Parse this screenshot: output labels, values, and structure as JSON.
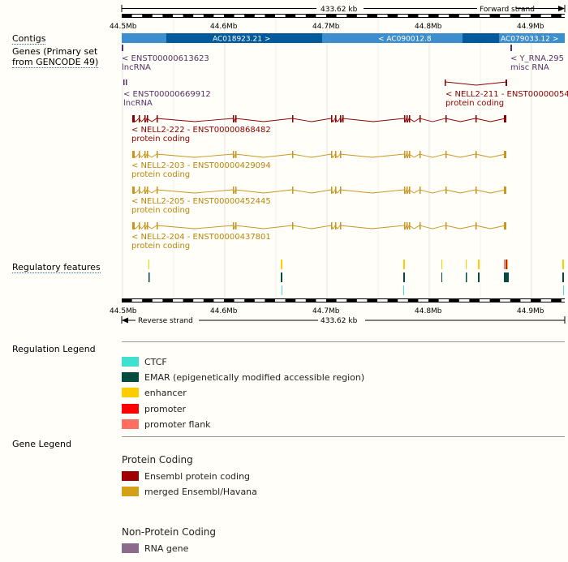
{
  "ruler_top": {
    "span": "433.62 kb",
    "strand": "Forward strand",
    "ticks": [
      "44.5Mb",
      "44.6Mb",
      "44.7Mb",
      "44.8Mb",
      "44.9Mb"
    ]
  },
  "ruler_bottom": {
    "span": "433.62 kb",
    "strand": "Reverse strand",
    "ticks": [
      "44.5Mb",
      "44.6Mb",
      "44.7Mb",
      "44.8Mb",
      "44.9Mb"
    ]
  },
  "track_labels": {
    "contigs": "Contigs",
    "genes_line1": "Genes (Primary set",
    "genes_line2": "from GENCODE 49)",
    "regulatory": "Regulatory features"
  },
  "contigs": [
    {
      "label": "AC018923.21 >"
    },
    {
      "label": "< AC090012.8"
    },
    {
      "label": "AC079033.12 >"
    }
  ],
  "genes": [
    {
      "name": "< ENST00000613623",
      "biotype": "lncRNA",
      "color": "#553366"
    },
    {
      "name": "< Y_RNA.295",
      "biotype": "misc RNA",
      "color": "#553366"
    },
    {
      "name": "< ENST00000669912",
      "biotype": "lncRNA",
      "color": "#553366"
    },
    {
      "name": "< NELL2-211 - ENST00000054",
      "biotype": "protein coding",
      "color": "#8b0000"
    },
    {
      "name": "< NELL2-222 - ENST00000868482",
      "biotype": "protein coding",
      "color": "#8b0000"
    },
    {
      "name": "< NELL2-203 - ENST00000429094",
      "biotype": "protein coding",
      "color": "#b8860b"
    },
    {
      "name": "< NELL2-205 - ENST00000452445",
      "biotype": "protein coding",
      "color": "#b8860b"
    },
    {
      "name": "< NELL2-204 - ENST00000437801",
      "biotype": "protein coding",
      "color": "#b8860b"
    }
  ],
  "regulation_legend": {
    "title": "Regulation Legend",
    "items": [
      {
        "label": "CTCF",
        "color": "#40e0d0"
      },
      {
        "label": "EMAR (epigenetically modified accessible region)",
        "color": "#004d40"
      },
      {
        "label": "enhancer",
        "color": "#ffcc00"
      },
      {
        "label": "promoter",
        "color": "#ff0000"
      },
      {
        "label": "promoter flank",
        "color": "#ff6f61"
      }
    ]
  },
  "gene_legend": {
    "title": "Gene Legend",
    "protein_coding_title": "Protein Coding",
    "protein_items": [
      {
        "label": "Ensembl protein coding",
        "color": "#a00000"
      },
      {
        "label": "merged Ensembl/Havana",
        "color": "#d4a017"
      }
    ],
    "non_protein_title": "Non-Protein Coding",
    "non_protein_items": [
      {
        "label": "RNA gene",
        "color": "#8b6a8b"
      }
    ]
  }
}
